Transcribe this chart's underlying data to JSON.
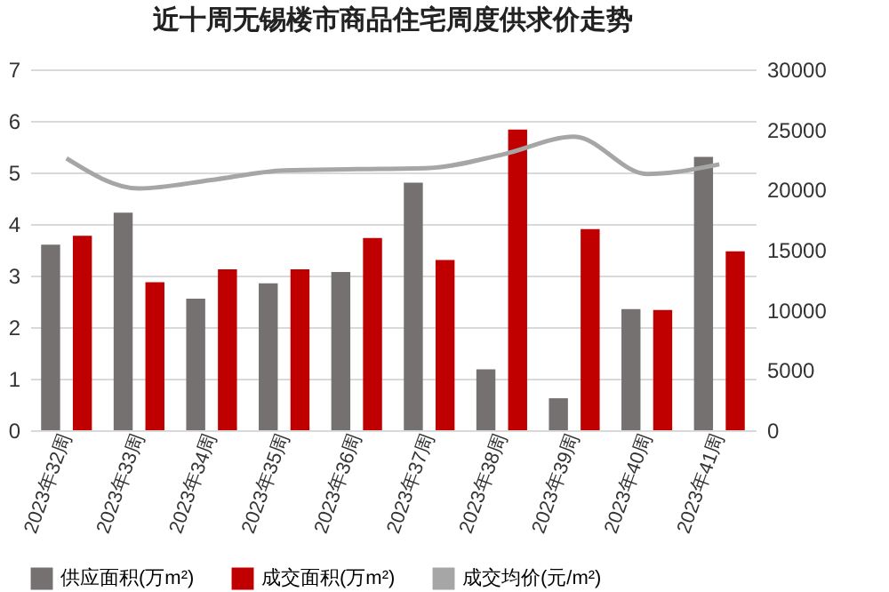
{
  "chart_data": {
    "type": "bar",
    "title": "近十周无锡楼市商品住宅周度供求价走势",
    "categories": [
      "2023年32周",
      "2023年33周",
      "2023年34周",
      "2023年35周",
      "2023年36周",
      "2023年37周",
      "2023年38周",
      "2023年39周",
      "2023年40周",
      "2023年41周"
    ],
    "series": [
      {
        "name": "供应面积(万m²)",
        "color": "#767171",
        "values": [
          3.6,
          4.22,
          2.55,
          2.85,
          3.07,
          4.8,
          1.18,
          0.62,
          2.35,
          5.3
        ]
      },
      {
        "name": "成交面积(万m²)",
        "color": "#c00000",
        "values": [
          3.77,
          2.87,
          3.12,
          3.12,
          3.73,
          3.3,
          5.83,
          3.9,
          2.33,
          3.47
        ]
      },
      {
        "name": "成交均价(元/m²)",
        "color": "#a6a6a6",
        "type": "line",
        "axis": "y2",
        "values": [
          22600,
          20100,
          20800,
          21600,
          21700,
          21800,
          22900,
          24400,
          21300,
          22100
        ]
      }
    ],
    "ylim": [
      0,
      7
    ],
    "yticks": [
      0,
      1,
      2,
      3,
      4,
      5,
      6,
      7
    ],
    "y2lim": [
      0,
      30000
    ],
    "y2ticks": [
      0,
      5000,
      10000,
      15000,
      20000,
      25000,
      30000
    ],
    "grid": "y",
    "legend": "bottom"
  }
}
